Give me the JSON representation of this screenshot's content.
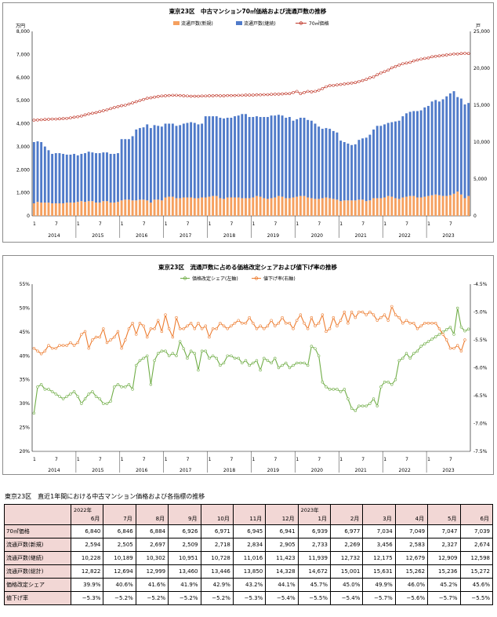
{
  "chart_data": [
    {
      "type": "bar",
      "title": "東京23区　中古マンション70㎡価格および流通戸数の推移",
      "unit_left": "万円",
      "unit_right": "戸",
      "ylim_left": [
        0,
        8000
      ],
      "ylim_right": [
        0,
        25000
      ],
      "y_ticks_left": [
        "0",
        "1,000",
        "2,000",
        "3,000",
        "4,000",
        "5,000",
        "6,000",
        "7,000",
        "8,000"
      ],
      "y_ticks_right": [
        "0",
        "5,000",
        "10,000",
        "15,000",
        "20,000",
        "25,000"
      ],
      "years": [
        "2014",
        "2015",
        "2016",
        "2017",
        "2018",
        "2019",
        "2020",
        "2021",
        "2022",
        "2023"
      ],
      "month_tick_labels": [
        "1",
        "7"
      ],
      "start": "2014-01",
      "series": [
        {
          "name": "流通戸数(新規)",
          "kind": "bar",
          "axis": "right",
          "color": "#f5a05f",
          "values": [
            1700,
            1900,
            1800,
            1800,
            1800,
            1700,
            1700,
            1700,
            1700,
            1800,
            1800,
            1800,
            1900,
            2000,
            1900,
            2000,
            2000,
            1800,
            1800,
            2000,
            2000,
            1800,
            1800,
            1900,
            2100,
            2200,
            2200,
            2100,
            2100,
            2200,
            2200,
            2100,
            1800,
            2200,
            2200,
            2100,
            2500,
            2600,
            2600,
            2400,
            2400,
            2500,
            2500,
            2500,
            2400,
            2400,
            2500,
            2500,
            2600,
            2700,
            2700,
            2400,
            2300,
            2500,
            2500,
            2500,
            2500,
            2400,
            2400,
            2400,
            2500,
            2700,
            2600,
            2400,
            2300,
            2400,
            2500,
            2700,
            2600,
            2400,
            2400,
            2500,
            2600,
            2700,
            2700,
            2500,
            2400,
            2300,
            2300,
            2400,
            2500,
            2400,
            2300,
            2200,
            2000,
            2100,
            2100,
            2100,
            2100,
            2200,
            2200,
            2000,
            2100,
            2400,
            2400,
            2400,
            2500,
            2700,
            2600,
            2400,
            2300,
            2500,
            2600,
            2700,
            2700,
            2500,
            2500,
            2600,
            2700,
            2800,
            2900,
            2800,
            2700,
            2700,
            2800,
            3000,
            3300,
            2900,
            2400,
            2700
          ]
        },
        {
          "name": "流通戸数(継続)",
          "kind": "bar",
          "axis": "right",
          "color": "#4f7ac9",
          "values": [
            8300,
            8200,
            8200,
            7600,
            7100,
            6700,
            6800,
            6800,
            6700,
            6500,
            6500,
            6600,
            6300,
            6400,
            6600,
            6700,
            6600,
            6700,
            6700,
            6600,
            6600,
            6600,
            6600,
            6600,
            8300,
            8200,
            8200,
            8700,
            9600,
            9700,
            9800,
            10300,
            10100,
            10100,
            10000,
            10000,
            10000,
            9900,
            9900,
            9800,
            9900,
            10000,
            10100,
            10200,
            10200,
            10000,
            10000,
            11000,
            10900,
            10800,
            10800,
            10900,
            10900,
            10800,
            10800,
            11000,
            11100,
            11400,
            11400,
            11000,
            10900,
            10800,
            10800,
            11000,
            11100,
            11200,
            11100,
            11000,
            11000,
            10900,
            11000,
            10400,
            10500,
            10600,
            10600,
            10500,
            10500,
            10200,
            9800,
            9400,
            9400,
            9400,
            9200,
            9100,
            8200,
            7900,
            7700,
            7500,
            7600,
            8100,
            8300,
            8600,
            8900,
            9300,
            9800,
            9800,
            9900,
            9900,
            10100,
            10400,
            10600,
            11000,
            11300,
            11400,
            11500,
            11700,
            11800,
            12100,
            12200,
            12700,
            12800,
            12700,
            13100,
            13500,
            13800,
            13900,
            12800,
            13000,
            12700,
            12600
          ]
        },
        {
          "name": "70㎡価格",
          "kind": "line",
          "axis": "left",
          "color": "#c0392b",
          "values": [
            4150,
            4160,
            4170,
            4180,
            4190,
            4200,
            4200,
            4210,
            4220,
            4230,
            4250,
            4280,
            4300,
            4330,
            4380,
            4420,
            4450,
            4480,
            4520,
            4560,
            4600,
            4650,
            4700,
            4740,
            4780,
            4800,
            4850,
            4900,
            4950,
            5000,
            5050,
            5100,
            5120,
            5150,
            5180,
            5200,
            5210,
            5220,
            5230,
            5230,
            5220,
            5210,
            5200,
            5190,
            5190,
            5190,
            5200,
            5200,
            5210,
            5210,
            5220,
            5210,
            5210,
            5220,
            5220,
            5220,
            5230,
            5230,
            5240,
            5240,
            5240,
            5250,
            5250,
            5260,
            5260,
            5270,
            5280,
            5280,
            5290,
            5300,
            5300,
            5350,
            5400,
            5300,
            5350,
            5400,
            5380,
            5400,
            5450,
            5520,
            5600,
            5650,
            5660,
            5680,
            5700,
            5720,
            5740,
            5760,
            5780,
            5830,
            5870,
            5920,
            5990,
            6030,
            6120,
            6200,
            6260,
            6320,
            6420,
            6480,
            6540,
            6600,
            6630,
            6660,
            6720,
            6760,
            6800,
            6830,
            6850,
            6900,
            6920,
            6940,
            6960,
            6980,
            7000,
            7020,
            7020,
            7040,
            7050,
            7040
          ]
        }
      ]
    },
    {
      "type": "line",
      "title": "東京23区　流通戸数に占める価格改定シェアおよび値下げ率の推移",
      "ylim_left": [
        20,
        55
      ],
      "ylim_right": [
        -7.5,
        -4.5
      ],
      "y_ticks_left": [
        "20%",
        "25%",
        "30%",
        "35%",
        "40%",
        "45%",
        "50%",
        "55%"
      ],
      "y_ticks_right": [
        "-7.5%",
        "-7.0%",
        "-6.5%",
        "-6.0%",
        "-5.5%",
        "-5.0%",
        "-4.5%"
      ],
      "years": [
        "2014",
        "2015",
        "2016",
        "2017",
        "2018",
        "2019",
        "2020",
        "2021",
        "2022",
        "2023"
      ],
      "month_tick_labels": [
        "1",
        "7"
      ],
      "start": "2014-01",
      "series": [
        {
          "name": "価格改定シェア(左軸)",
          "axis": "left",
          "color": "#70ad47",
          "values": [
            28.0,
            33.5,
            34.0,
            33.0,
            33.0,
            32.5,
            32.0,
            31.5,
            31.0,
            31.5,
            32.0,
            32.5,
            31.5,
            30.0,
            31.0,
            32.0,
            32.5,
            31.5,
            31.0,
            30.0,
            30.0,
            30.5,
            33.5,
            34.0,
            33.5,
            33.5,
            34.0,
            33.0,
            38.0,
            39.0,
            39.5,
            40.0,
            34.0,
            39.0,
            40.5,
            41.0,
            41.0,
            40.0,
            40.5,
            40.0,
            43.0,
            41.5,
            39.5,
            41.0,
            40.5,
            37.0,
            41.0,
            41.0,
            39.5,
            40.0,
            39.5,
            38.0,
            38.5,
            40.0,
            40.0,
            39.5,
            39.5,
            38.5,
            39.0,
            38.0,
            38.5,
            39.0,
            37.0,
            39.5,
            39.0,
            38.5,
            39.5,
            37.5,
            38.0,
            38.5,
            37.5,
            38.0,
            38.5,
            38.5,
            38.5,
            38.0,
            42.0,
            41.5,
            40.0,
            34.5,
            33.5,
            33.0,
            33.0,
            33.0,
            32.5,
            33.0,
            31.0,
            29.0,
            28.5,
            29.5,
            29.5,
            29.5,
            30.0,
            31.0,
            29.5,
            33.5,
            34.5,
            34.5,
            34.0,
            35.0,
            39.0,
            39.5,
            40.5,
            39.5,
            40.5,
            41.0,
            42.0,
            42.5,
            43.0,
            43.5,
            44.0,
            44.5,
            45.0,
            45.5,
            46.0,
            44.5,
            50.0,
            46.0,
            45.2,
            45.6
          ]
        },
        {
          "name": "値下げ率(右軸)",
          "axis": "right",
          "color": "#ed7d31",
          "values": [
            -5.65,
            -5.7,
            -5.75,
            -5.7,
            -5.6,
            -5.65,
            -5.65,
            -5.6,
            -5.6,
            -5.6,
            -5.55,
            -5.6,
            -5.55,
            -5.4,
            -5.35,
            -5.65,
            -5.5,
            -5.45,
            -5.45,
            -5.3,
            -5.55,
            -5.5,
            -5.45,
            -5.35,
            -5.65,
            -5.5,
            -5.3,
            -5.2,
            -5.4,
            -5.2,
            -5.25,
            -5.45,
            -5.3,
            -5.3,
            -5.15,
            -5.35,
            -5.05,
            -5.3,
            -5.45,
            -5.1,
            -5.3,
            -5.3,
            -5.25,
            -5.2,
            -5.3,
            -5.2,
            -5.3,
            -5.25,
            -5.45,
            -5.3,
            -5.3,
            -5.2,
            -5.25,
            -5.3,
            -5.25,
            -5.2,
            -5.15,
            -5.2,
            -5.2,
            -5.1,
            -5.2,
            -5.3,
            -5.25,
            -5.3,
            -5.25,
            -5.15,
            -5.25,
            -5.2,
            -5.1,
            -5.2,
            -5.2,
            -5.3,
            -5.15,
            -5.05,
            -5.2,
            -5.3,
            -5.1,
            -5.25,
            -5.2,
            -5.05,
            -5.35,
            -5.3,
            -5.1,
            -5.25,
            -5.15,
            -5.0,
            -5.2,
            -5.0,
            -5.1,
            -5.0,
            -5.0,
            -5.05,
            -5.0,
            -5.05,
            -5.15,
            -5.1,
            -5.05,
            -5.15,
            -4.9,
            -5.05,
            -5.1,
            -5.2,
            -5.15,
            -5.2,
            -5.2,
            -5.3,
            -5.25,
            -5.2,
            -5.2,
            -5.2,
            -5.2,
            -5.3,
            -5.4,
            -5.5,
            -5.65,
            -5.65,
            -5.6,
            -5.7,
            -5.5
          ]
        }
      ]
    }
  ],
  "table": {
    "title": "東京23区　直近1年間における中古マンション価格および各指標の推移",
    "year_labels": [
      "2022年",
      "",
      "",
      "",
      "",
      "",
      "",
      "2023年",
      "",
      "",
      "",
      "",
      ""
    ],
    "months": [
      "6月",
      "7月",
      "8月",
      "9月",
      "10月",
      "11月",
      "12月",
      "1月",
      "2月",
      "3月",
      "4月",
      "5月",
      "6月"
    ],
    "rows": [
      {
        "label": "70㎡価格",
        "values": [
          "6,840",
          "6,846",
          "6,884",
          "6,926",
          "6,971",
          "6,945",
          "6,941",
          "6,939",
          "6,977",
          "7,034",
          "7,049",
          "7,047",
          "7,039"
        ]
      },
      {
        "label": "流通戸数(新規)",
        "values": [
          "2,594",
          "2,505",
          "2,697",
          "2,509",
          "2,718",
          "2,834",
          "2,905",
          "2,733",
          "2,269",
          "3,456",
          "2,583",
          "2,327",
          "2,674"
        ]
      },
      {
        "label": "流通戸数(継続)",
        "values": [
          "10,228",
          "10,189",
          "10,302",
          "10,951",
          "10,728",
          "11,016",
          "11,423",
          "11,939",
          "12,732",
          "12,175",
          "12,679",
          "12,909",
          "12,598"
        ]
      },
      {
        "label": "流通戸数(総計)",
        "values": [
          "12,822",
          "12,694",
          "12,999",
          "13,460",
          "13,446",
          "13,850",
          "14,328",
          "14,672",
          "15,001",
          "15,631",
          "15,262",
          "15,236",
          "15,272"
        ]
      },
      {
        "label": "価格改定シェア",
        "values": [
          "39.9%",
          "40.6%",
          "41.6%",
          "41.9%",
          "42.9%",
          "43.2%",
          "44.1%",
          "45.7%",
          "45.0%",
          "49.9%",
          "46.0%",
          "45.2%",
          "45.6%"
        ]
      },
      {
        "label": "値下げ率",
        "values": [
          "−5.3%",
          "−5.2%",
          "−5.2%",
          "−5.2%",
          "−5.2%",
          "−5.3%",
          "−5.4%",
          "−5.5%",
          "−5.4%",
          "−5.7%",
          "−5.6%",
          "−5.7%",
          "−5.5%"
        ]
      }
    ]
  }
}
